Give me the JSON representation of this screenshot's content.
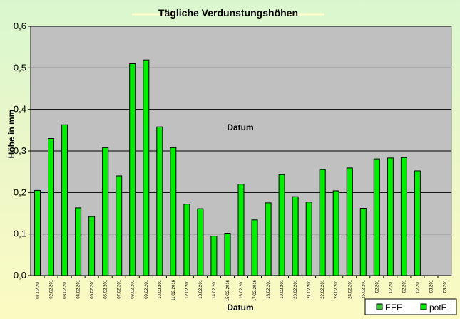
{
  "chart_data": {
    "type": "bar",
    "title": "Tägliche Verdunstungshöhen",
    "ylabel": "Höhe in mm",
    "xlabel": "Datum",
    "ylim": [
      0,
      0.6
    ],
    "yticks": [
      "0,0",
      "0,1",
      "0,2",
      "0,3",
      "0,4",
      "0,5",
      "0,6"
    ],
    "grid": true,
    "legend_position": "bottom-right",
    "categories": [
      "01.02.201",
      "02.02.201",
      "03.02.201",
      "04.02.201",
      "05.02.201",
      "06.02.201",
      "07.02.201",
      "08.02.201",
      "09.02.201",
      "10.02.201",
      "11.02.2016",
      "12.02.201",
      "13.02.201",
      "14.02.201",
      "15.02.2016",
      "16.02.201",
      "17.02.2016",
      "18.02.201",
      "19.02.201",
      "20.02.201",
      "21.02.201",
      "22.02.201",
      "23.02.201",
      "24.02.201",
      "25.02.201",
      "02.201",
      "02.201",
      "02.201",
      "02.201",
      "03.201",
      "03.201"
    ],
    "series": [
      {
        "name": "EEE",
        "color": "#33cc33",
        "values": [
          null,
          null,
          null,
          null,
          null,
          null,
          null,
          null,
          null,
          null,
          null,
          null,
          null,
          null,
          null,
          null,
          null,
          null,
          null,
          null,
          null,
          null,
          null,
          null,
          null,
          null,
          null,
          null,
          null,
          null,
          null
        ]
      },
      {
        "name": "potE",
        "color": "#00ee00",
        "values": [
          0.205,
          0.33,
          0.363,
          0.163,
          0.142,
          0.308,
          0.24,
          0.51,
          0.519,
          0.358,
          0.308,
          0.172,
          0.161,
          0.095,
          0.102,
          0.22,
          0.134,
          0.175,
          0.243,
          0.19,
          0.177,
          0.255,
          0.204,
          0.259,
          0.162,
          0.281,
          0.283,
          0.284,
          0.252,
          null,
          null
        ]
      }
    ]
  },
  "colors": {
    "plot_background": "#c0c0c0",
    "gridline": "#000000",
    "bar_fill": "#00ee00",
    "bar_stroke": "#000000",
    "title_highlight": "#ffffcc"
  }
}
